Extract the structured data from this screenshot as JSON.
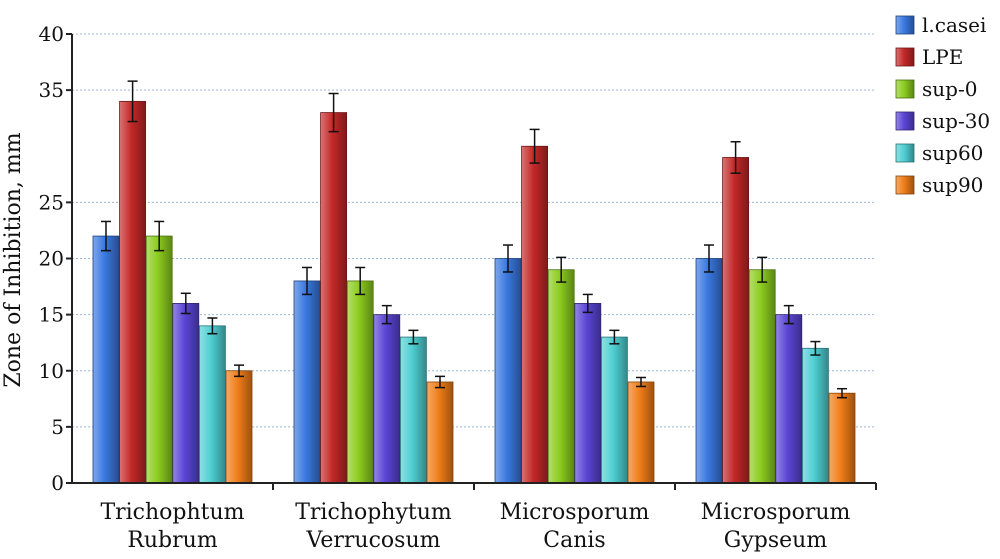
{
  "chart_data": {
    "type": "bar",
    "title": "",
    "xlabel": "",
    "ylabel": "Zone of Inhibition, mm",
    "ylim": [
      0,
      40
    ],
    "y_ticks": [
      "0",
      "5",
      "10",
      "15",
      "20",
      "25",
      "35",
      "40"
    ],
    "y_tick_values": [
      0,
      5,
      10,
      15,
      20,
      25,
      35,
      40
    ],
    "grid": true,
    "legend_position": "right",
    "categories": [
      [
        "Trichophtum",
        "Rubrum"
      ],
      [
        "Trichophytum",
        "Verrucosum"
      ],
      [
        "Microsporum",
        "Canis"
      ],
      [
        "Microsporum",
        "Gypseum"
      ]
    ],
    "series": [
      {
        "name": "l.casei",
        "color": "#3a78e0",
        "values": [
          22,
          18,
          20,
          20
        ],
        "errors": [
          1.3,
          1.2,
          1.2,
          1.2
        ]
      },
      {
        "name": "LPE",
        "color": "#c42828",
        "values": [
          34,
          33,
          30,
          29
        ],
        "errors": [
          1.8,
          1.7,
          1.5,
          1.4
        ]
      },
      {
        "name": "sup-0",
        "color": "#8ccc1e",
        "values": [
          22,
          18,
          19,
          19
        ],
        "errors": [
          1.3,
          1.2,
          1.1,
          1.1
        ]
      },
      {
        "name": "sup-30",
        "color": "#5b45d6",
        "values": [
          16,
          15,
          16,
          15
        ],
        "errors": [
          0.9,
          0.8,
          0.8,
          0.8
        ]
      },
      {
        "name": "sup60",
        "color": "#4fcfd3",
        "values": [
          14,
          13,
          13,
          12
        ],
        "errors": [
          0.7,
          0.6,
          0.6,
          0.6
        ]
      },
      {
        "name": "sup90",
        "color": "#f07d18",
        "values": [
          10,
          9,
          9,
          8
        ],
        "errors": [
          0.5,
          0.5,
          0.4,
          0.4
        ]
      }
    ]
  }
}
